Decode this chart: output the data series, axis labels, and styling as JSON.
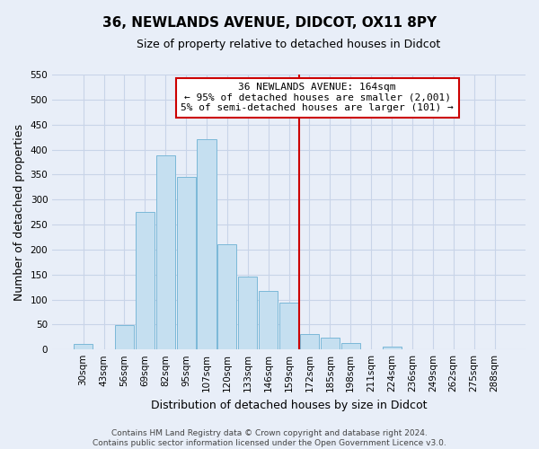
{
  "title": "36, NEWLANDS AVENUE, DIDCOT, OX11 8PY",
  "subtitle": "Size of property relative to detached houses in Didcot",
  "xlabel": "Distribution of detached houses by size in Didcot",
  "ylabel": "Number of detached properties",
  "categories": [
    "30sqm",
    "43sqm",
    "56sqm",
    "69sqm",
    "82sqm",
    "95sqm",
    "107sqm",
    "120sqm",
    "133sqm",
    "146sqm",
    "159sqm",
    "172sqm",
    "185sqm",
    "198sqm",
    "211sqm",
    "224sqm",
    "236sqm",
    "249sqm",
    "262sqm",
    "275sqm",
    "288sqm"
  ],
  "values": [
    11,
    0,
    48,
    275,
    388,
    345,
    420,
    210,
    145,
    118,
    93,
    31,
    23,
    13,
    0,
    5,
    0,
    0,
    0,
    0,
    0
  ],
  "bar_color": "#c5dff0",
  "bar_edge_color": "#7bb8d8",
  "vline_x_index": 10.5,
  "vline_color": "#cc0000",
  "annotation_title": "36 NEWLANDS AVENUE: 164sqm",
  "annotation_line1": "← 95% of detached houses are smaller (2,001)",
  "annotation_line2": "5% of semi-detached houses are larger (101) →",
  "annotation_box_facecolor": "#ffffff",
  "annotation_box_edgecolor": "#cc0000",
  "ylim": [
    0,
    550
  ],
  "yticks": [
    0,
    50,
    100,
    150,
    200,
    250,
    300,
    350,
    400,
    450,
    500,
    550
  ],
  "footer_line1": "Contains HM Land Registry data © Crown copyright and database right 2024.",
  "footer_line2": "Contains public sector information licensed under the Open Government Licence v3.0.",
  "background_color": "#e8eef8",
  "grid_color": "#d0d8e8",
  "title_fontsize": 11,
  "subtitle_fontsize": 9,
  "ylabel_fontsize": 9,
  "xlabel_fontsize": 9,
  "tick_fontsize": 7.5,
  "footer_fontsize": 6.5
}
